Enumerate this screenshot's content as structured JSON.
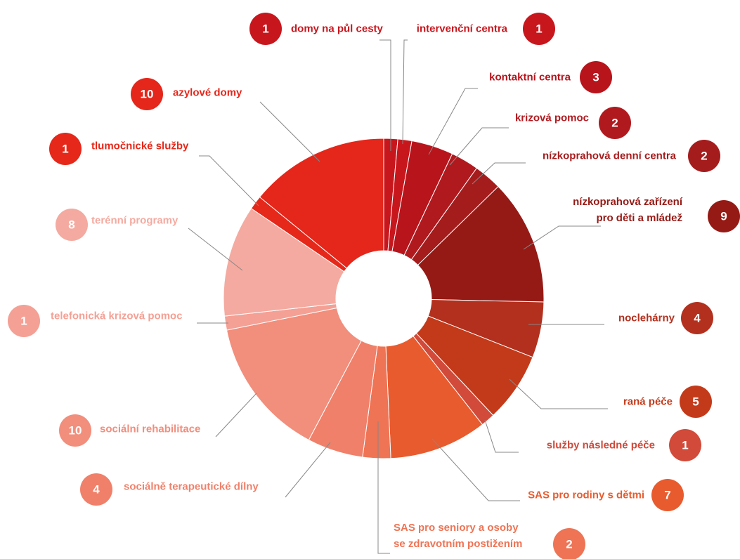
{
  "chart_data": {
    "type": "donut",
    "categories": [
      "domy na půl cesty",
      "intervenční centra",
      "kontaktní centra",
      "krizová pomoc",
      "nízkoprahová denní centra",
      "nízkoprahová zařízení\npro děti a mládež",
      "noclehárny",
      "raná péče",
      "služby následné péče",
      "SAS pro rodiny s dětmi",
      "SAS pro seniory a osoby\nse zdravotním postižením",
      "sociálně terapeutické dílny",
      "sociální rehabilitace",
      "telefonická krizová pomoc",
      "terénní programy",
      "tlumočnické služby",
      "azylové domy"
    ],
    "values": [
      1,
      1,
      3,
      2,
      2,
      9,
      4,
      5,
      1,
      7,
      2,
      4,
      10,
      1,
      8,
      1,
      10
    ],
    "colors": [
      "#c8161d",
      "#c8161d",
      "#b8141c",
      "#b01a1f",
      "#a51c1d",
      "#951a15",
      "#b3301e",
      "#c33a1a",
      "#d14a3a",
      "#e85b2e",
      "#ee7455",
      "#f0806a",
      "#f28e7c",
      "#f4a095",
      "#f4aaa0",
      "#e5281a",
      "#e5261a"
    ]
  }
}
